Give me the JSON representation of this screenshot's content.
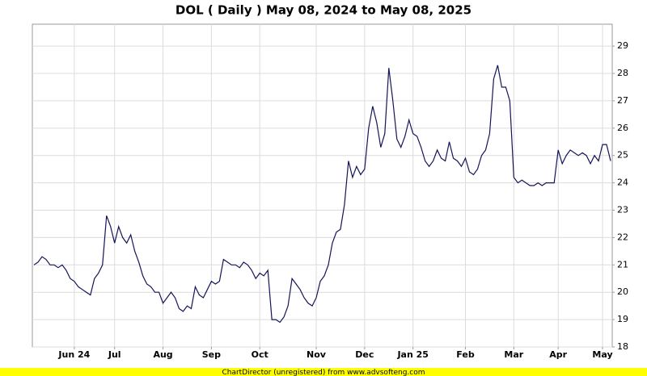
{
  "chart_data": {
    "type": "line",
    "title": "DOL ( Daily ) May 08, 2024 to May 08, 2025",
    "footer": "ChartDirector (unregistered) from www.advsofteng.com",
    "categories": [
      null,
      null,
      null,
      null,
      null,
      null,
      null,
      null,
      null,
      null,
      "Jun 24",
      null,
      null,
      null,
      null,
      null,
      null,
      null,
      null,
      null,
      "Jul",
      null,
      null,
      null,
      null,
      null,
      null,
      null,
      null,
      null,
      null,
      null,
      "Aug",
      null,
      null,
      null,
      null,
      null,
      null,
      null,
      null,
      null,
      null,
      null,
      "Sep",
      null,
      null,
      null,
      null,
      null,
      null,
      null,
      null,
      null,
      null,
      null,
      "Oct",
      null,
      null,
      null,
      null,
      null,
      null,
      null,
      null,
      null,
      null,
      null,
      null,
      null,
      "Nov",
      null,
      null,
      null,
      null,
      null,
      null,
      null,
      null,
      null,
      null,
      null,
      "Dec",
      null,
      null,
      null,
      null,
      null,
      null,
      null,
      null,
      null,
      null,
      null,
      "Jan 25",
      null,
      null,
      null,
      null,
      null,
      null,
      null,
      null,
      null,
      null,
      null,
      null,
      "Feb",
      null,
      null,
      null,
      null,
      null,
      null,
      null,
      null,
      null,
      null,
      null,
      "Mar",
      null,
      null,
      null,
      null,
      null,
      null,
      null,
      null,
      null,
      null,
      "Apr",
      null,
      null,
      null,
      null,
      null,
      null,
      null,
      null,
      null,
      null,
      "May",
      null,
      null
    ],
    "values": [
      21.0,
      21.1,
      21.3,
      21.2,
      21.0,
      21.0,
      20.9,
      21.0,
      20.8,
      20.5,
      20.4,
      20.2,
      20.1,
      20.0,
      19.9,
      20.5,
      20.7,
      21.0,
      22.8,
      22.4,
      21.8,
      22.4,
      22.0,
      21.8,
      22.1,
      21.5,
      21.1,
      20.6,
      20.3,
      20.2,
      20.0,
      20.0,
      19.6,
      19.8,
      20.0,
      19.8,
      19.4,
      19.3,
      19.5,
      19.4,
      20.2,
      19.9,
      19.8,
      20.1,
      20.4,
      20.3,
      20.4,
      21.2,
      21.1,
      21.0,
      21.0,
      20.9,
      21.1,
      21.0,
      20.8,
      20.5,
      20.7,
      20.6,
      20.8,
      19.0,
      19.0,
      18.9,
      19.1,
      19.5,
      20.5,
      20.3,
      20.1,
      19.8,
      19.6,
      19.5,
      19.8,
      20.4,
      20.6,
      21.0,
      21.8,
      22.2,
      22.3,
      23.2,
      24.8,
      24.2,
      24.6,
      24.3,
      24.5,
      26.0,
      26.8,
      26.2,
      25.3,
      25.8,
      28.2,
      27.0,
      25.6,
      25.3,
      25.7,
      26.3,
      25.8,
      25.7,
      25.3,
      24.8,
      24.6,
      24.8,
      25.2,
      24.9,
      24.8,
      25.5,
      24.9,
      24.8,
      24.6,
      24.9,
      24.4,
      24.3,
      24.5,
      25.0,
      25.2,
      25.8,
      27.8,
      28.3,
      27.5,
      27.5,
      27.0,
      24.2,
      24.0,
      24.1,
      24.0,
      23.9,
      23.9,
      24.0,
      23.9,
      24.0,
      24.0,
      24.0,
      25.2,
      24.7,
      25.0,
      25.2,
      25.1,
      25.0,
      25.1,
      25.0,
      24.7,
      25.0,
      24.8,
      25.4,
      25.4,
      24.8
    ],
    "color": "#14145a",
    "ylim": [
      18,
      29.8
    ],
    "yticks": [
      18,
      19,
      20,
      21,
      22,
      23,
      24,
      25,
      26,
      27,
      28,
      29
    ],
    "grid": true
  }
}
